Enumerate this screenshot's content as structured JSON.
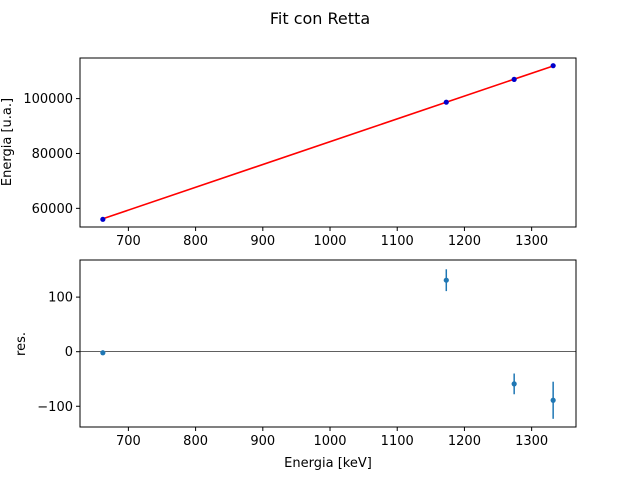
{
  "chart_data": [
    {
      "type": "scatter",
      "title": "Fit con Retta",
      "xlabel": "",
      "ylabel": "Energia [u.a.]",
      "xlim": [
        628,
        1366
      ],
      "ylim": [
        53200,
        114800
      ],
      "xticks": [
        700,
        800,
        900,
        1000,
        1100,
        1200,
        1300
      ],
      "yticks": [
        60000,
        80000,
        100000
      ],
      "series": [
        {
          "kind": "points",
          "color": "#0000cc",
          "x": [
            662,
            1173,
            1274,
            1332
          ],
          "y": [
            56000,
            98700,
            107000,
            112000
          ]
        },
        {
          "kind": "fit-line",
          "color": "#ff0000",
          "x": [
            662,
            1332
          ],
          "y": [
            56200,
            111900
          ]
        }
      ]
    },
    {
      "type": "scatter",
      "xlabel": "Energia [keV]",
      "ylabel": "res.",
      "xlim": [
        628,
        1366
      ],
      "ylim": [
        -138,
        168
      ],
      "xticks": [
        700,
        800,
        900,
        1000,
        1100,
        1200,
        1300
      ],
      "yticks": [
        100,
        0,
        -100
      ],
      "yticklabels": [
        "100",
        "0",
        "−100"
      ],
      "hline": 0,
      "series": [
        {
          "kind": "errorbar",
          "color": "#1f77b4",
          "x": [
            662,
            1173,
            1274,
            1332
          ],
          "y": [
            -2,
            131,
            -59,
            -89
          ],
          "yerr": [
            3,
            20,
            19,
            34
          ]
        }
      ]
    }
  ]
}
